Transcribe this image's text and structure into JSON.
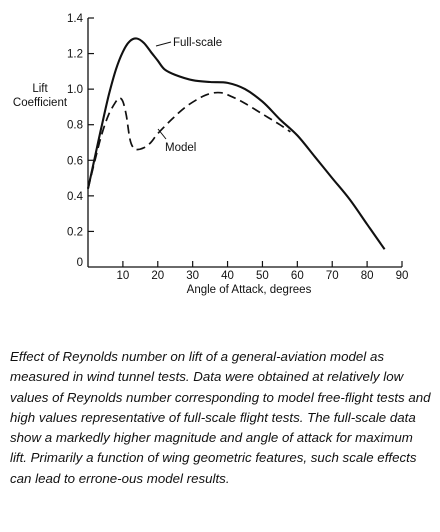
{
  "chart_data": {
    "type": "line",
    "xlabel": "Angle of Attack, degrees",
    "ylabel_line1": "Lift",
    "ylabel_line2": "Coefficient",
    "xlim": [
      0,
      90
    ],
    "ylim": [
      0,
      1.4
    ],
    "x_ticks": [
      10,
      20,
      30,
      40,
      50,
      60,
      70,
      80,
      90
    ],
    "y_ticks": [
      0,
      0.2,
      0.4,
      0.6,
      0.8,
      1.0,
      1.2,
      1.4
    ],
    "y_tick_labels": [
      "0",
      "0.2",
      "0.4",
      "0.6",
      "0.8",
      "1.0",
      "1.2",
      "1.4"
    ],
    "grid": false,
    "series": [
      {
        "name": "Full-scale",
        "style": "solid",
        "x": [
          0,
          2,
          4,
          6,
          8,
          10,
          12,
          14,
          16,
          18,
          20,
          22,
          25,
          30,
          35,
          40,
          45,
          50,
          55,
          60,
          65,
          70,
          75,
          80,
          85
        ],
        "y": [
          0.44,
          0.62,
          0.8,
          0.97,
          1.11,
          1.21,
          1.27,
          1.285,
          1.26,
          1.21,
          1.16,
          1.11,
          1.08,
          1.05,
          1.04,
          1.035,
          1.0,
          0.93,
          0.83,
          0.74,
          0.62,
          0.5,
          0.38,
          0.24,
          0.1
        ]
      },
      {
        "name": "Model",
        "style": "dashed",
        "x": [
          0,
          2,
          4,
          6,
          8,
          9,
          10,
          11,
          12,
          13,
          14,
          16,
          18,
          20,
          24,
          28,
          32,
          35,
          38,
          41,
          45,
          50,
          55,
          58
        ],
        "y": [
          0.44,
          0.6,
          0.75,
          0.86,
          0.93,
          0.95,
          0.93,
          0.85,
          0.72,
          0.67,
          0.66,
          0.67,
          0.7,
          0.75,
          0.83,
          0.9,
          0.95,
          0.975,
          0.98,
          0.96,
          0.92,
          0.86,
          0.8,
          0.76
        ]
      }
    ]
  },
  "caption": "Effect of Reynolds number on lift of a general-aviation model as measured in wind tunnel tests. Data were obtained at relatively low values of Reynolds number corresponding to model free-flight tests and high values representative of full-scale flight tests. The full-scale data show a markedly higher magnitude and angle of attack for maximum lift. Primarily a function of wing geometric features, such scale effects can lead to errone-ous model results."
}
